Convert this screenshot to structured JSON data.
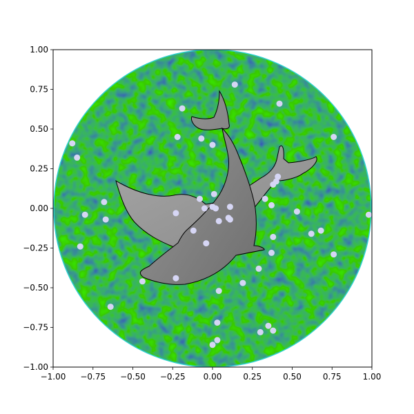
{
  "chart_data": {
    "type": "scatter",
    "title": "",
    "xlabel": "",
    "ylabel": "",
    "xlim": [
      -1.0,
      1.0
    ],
    "ylim": [
      -1.0,
      1.0
    ],
    "x_ticks": [
      "−1.00",
      "−0.75",
      "−0.50",
      "−0.25",
      "0.00",
      "0.25",
      "0.50",
      "0.75",
      "1.00"
    ],
    "y_ticks": [
      "−1.00",
      "−0.75",
      "−0.50",
      "−0.25",
      "0.00",
      "0.25",
      "0.50",
      "0.75",
      "1.00"
    ],
    "grid": false,
    "background": {
      "shape": "circle",
      "center": [
        0,
        0
      ],
      "radius": 1.0,
      "fill": "noise texture",
      "colors": [
        "#0a1a78",
        "#0b6a3a"
      ],
      "edge_color": "#2fd0d0"
    },
    "silhouettes": [
      {
        "name": "dolphin",
        "fill": "#8c8c8c",
        "edge_color": "#000000"
      },
      {
        "name": "dolphin",
        "fill": "#9a9a9a",
        "edge_color": "#000000"
      }
    ],
    "points_color": "#d6d6f5",
    "points": [
      [
        0.14,
        0.78
      ],
      [
        -0.19,
        0.63
      ],
      [
        0.42,
        0.66
      ],
      [
        -0.88,
        0.41
      ],
      [
        -0.85,
        0.32
      ],
      [
        -0.22,
        0.45
      ],
      [
        -0.07,
        0.44
      ],
      [
        0.0,
        0.4
      ],
      [
        0.76,
        0.45
      ],
      [
        0.41,
        0.2
      ],
      [
        0.4,
        0.17
      ],
      [
        0.38,
        0.15
      ],
      [
        -0.68,
        0.04
      ],
      [
        -0.08,
        0.06
      ],
      [
        0.01,
        0.09
      ],
      [
        0.33,
        0.06
      ],
      [
        0.37,
        0.02
      ],
      [
        -0.8,
        -0.04
      ],
      [
        -0.67,
        -0.07
      ],
      [
        -0.23,
        -0.03
      ],
      [
        -0.05,
        0.0
      ],
      [
        0.0,
        0.01
      ],
      [
        0.02,
        0.0
      ],
      [
        0.11,
        0.01
      ],
      [
        0.04,
        -0.08
      ],
      [
        0.1,
        -0.06
      ],
      [
        0.11,
        -0.07
      ],
      [
        0.53,
        -0.02
      ],
      [
        0.98,
        -0.04
      ],
      [
        -0.12,
        -0.14
      ],
      [
        -0.83,
        -0.24
      ],
      [
        -0.04,
        -0.22
      ],
      [
        0.38,
        -0.18
      ],
      [
        0.62,
        -0.16
      ],
      [
        0.68,
        -0.14
      ],
      [
        0.76,
        -0.29
      ],
      [
        0.37,
        -0.28
      ],
      [
        0.29,
        -0.38
      ],
      [
        -0.44,
        -0.46
      ],
      [
        -0.23,
        -0.44
      ],
      [
        0.19,
        -0.47
      ],
      [
        0.04,
        -0.52
      ],
      [
        -0.64,
        -0.62
      ],
      [
        0.03,
        -0.72
      ],
      [
        0.35,
        -0.74
      ],
      [
        0.38,
        -0.77
      ],
      [
        0.3,
        -0.78
      ],
      [
        0.03,
        -0.83
      ],
      [
        0.0,
        -0.86
      ]
    ]
  }
}
